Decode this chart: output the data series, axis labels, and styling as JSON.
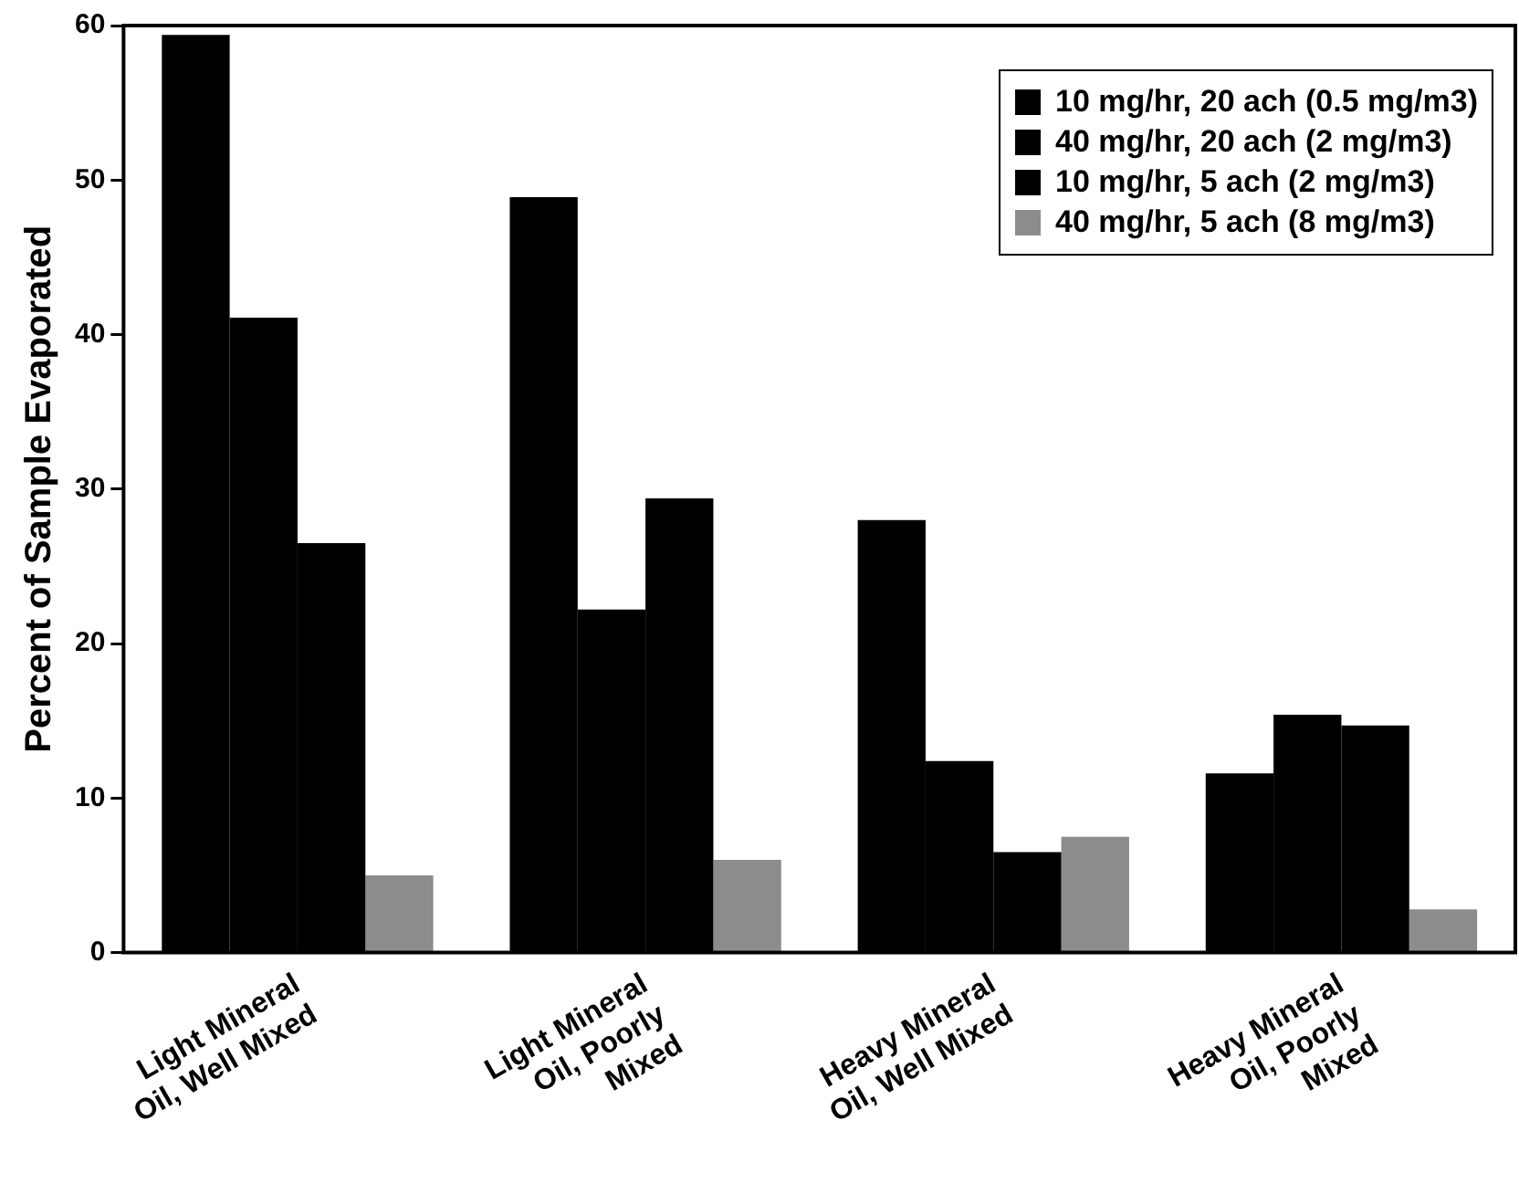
{
  "chart_data": {
    "type": "bar",
    "ylabel": "Percent of Sample Evaporated",
    "categories": [
      "Light Mineral Oil, Well Mixed",
      "Light Mineral Oil, Poorly Mixed",
      "Heavy Mineral Oil, Well Mixed",
      "Heavy Mineral Oil, Poorly Mixed"
    ],
    "series": [
      {
        "name": "10 mg/hr, 20 ach (0.5 mg/m3)",
        "color": "#000000",
        "values": [
          59.4,
          48.9,
          28.0,
          11.6
        ]
      },
      {
        "name": "40 mg/hr, 20 ach (2 mg/m3)",
        "color": "#000000",
        "values": [
          41.1,
          22.2,
          12.4,
          15.4
        ]
      },
      {
        "name": "10 mg/hr, 5 ach (2 mg/m3)",
        "color": "#000000",
        "values": [
          26.5,
          29.4,
          6.5,
          14.7
        ]
      },
      {
        "name": "40 mg/hr, 5 ach (8 mg/m3)",
        "color": "#8c8c8c",
        "values": [
          5.0,
          6.0,
          7.5,
          2.8
        ]
      }
    ],
    "ylim": [
      0,
      60
    ],
    "yticks": [
      0,
      10,
      20,
      30,
      40,
      50,
      60
    ],
    "grid": false,
    "legend": "top right"
  }
}
